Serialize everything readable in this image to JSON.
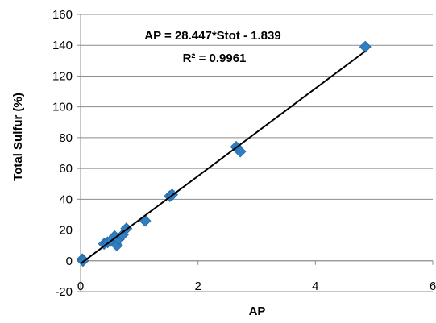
{
  "chart_data": {
    "type": "scatter",
    "title": "",
    "xlabel": "AP",
    "ylabel": "Total Sulfur (%)",
    "xlim": [
      0,
      6
    ],
    "ylim": [
      -20,
      160
    ],
    "x_ticks": [
      "0",
      "2",
      "4",
      "6"
    ],
    "y_ticks": [
      "-20",
      "0",
      "20",
      "40",
      "60",
      "80",
      "100",
      "120",
      "140",
      "160"
    ],
    "grid": {
      "horizontal": true,
      "vertical": false
    },
    "legend": "none",
    "marker_color": "#2E7FC1",
    "trend_color": "#000000",
    "series": [
      {
        "x": [
          0.03,
          0.04,
          0.4,
          0.46,
          0.52,
          0.58,
          0.62,
          0.65,
          0.72,
          0.78,
          1.1,
          1.52,
          1.56,
          2.65,
          2.72,
          4.85
        ],
        "y": [
          1,
          0,
          11,
          12,
          13,
          16,
          10,
          14,
          17,
          21,
          26,
          42,
          43,
          74,
          71,
          139
        ]
      }
    ],
    "trendline": {
      "slope": 28.447,
      "intercept": -1.839,
      "x_range": [
        0,
        4.85
      ]
    },
    "annotations": {
      "equation": "AP = 28.447*Stot - 1.839",
      "r_squared": "R² = 0.9961"
    }
  }
}
